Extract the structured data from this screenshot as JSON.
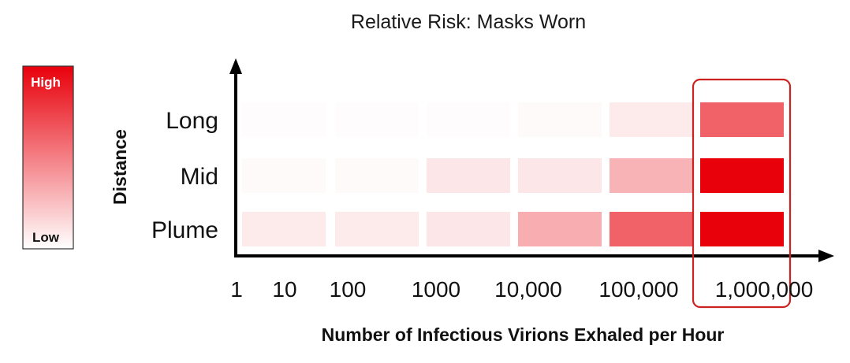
{
  "chart_data": {
    "type": "heatmap",
    "title": "Relative Risk: Masks Worn",
    "xlabel": "Number of Infectious Virions Exhaled per Hour",
    "ylabel": "Distance",
    "x_ticks": [
      "1",
      "10",
      "100",
      "1000",
      "10,000",
      "100,000",
      "1,000,000"
    ],
    "rows": [
      "Long",
      "Mid",
      "Plume"
    ],
    "columns": [
      "1–10",
      "10–100",
      "100–1000",
      "1000–10,000",
      "10,000–100,000",
      "100,000–1,000,000"
    ],
    "values": [
      [
        0.01,
        0.01,
        0.01,
        0.02,
        0.08,
        0.62
      ],
      [
        0.02,
        0.02,
        0.1,
        0.1,
        0.3,
        1.0
      ],
      [
        0.08,
        0.08,
        0.1,
        0.32,
        0.62,
        1.0
      ]
    ],
    "color_scale": {
      "low": "#ffffff",
      "high": "#e8000b",
      "low_label": "Low",
      "high_label": "High"
    },
    "highlight_column": 5,
    "highlight_color": "#cc2222"
  }
}
